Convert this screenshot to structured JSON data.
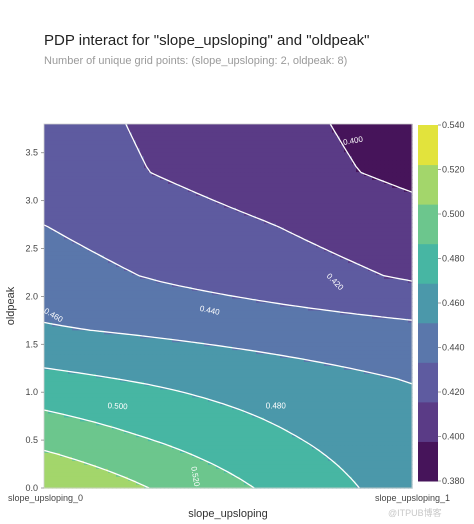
{
  "title": "PDP interact for \"slope_upsloping\" and \"oldpeak\"",
  "subtitle": "Number of unique grid points: (slope_upsloping: 2, oldpeak: 8)",
  "watermark": "@ITPUB博客",
  "chart_data": {
    "type": "contour",
    "xlabel": "slope_upsloping",
    "ylabel": "oldpeak",
    "x_tick_labels": [
      "slope_upsloping_0",
      "slope_upsloping_1"
    ],
    "xlim": [
      0,
      1
    ],
    "ylim": [
      0,
      3.8
    ],
    "y_ticks": [
      0.0,
      0.5,
      1.0,
      1.5,
      2.0,
      2.5,
      3.0,
      3.5
    ],
    "y_tick_labels": [
      "0.0",
      "0.5",
      "1.0",
      "1.5",
      "2.0",
      "2.5",
      "3.0",
      "3.5"
    ],
    "colorbar": {
      "ticks": [
        0.38,
        0.4,
        0.42,
        0.44,
        0.46,
        0.48,
        0.5,
        0.52,
        0.54
      ],
      "tick_labels": [
        "0.380",
        "0.400",
        "0.420",
        "0.440",
        "0.460",
        "0.480",
        "0.500",
        "0.520",
        "0.540"
      ],
      "colors": [
        "#46145a",
        "#5a3b86",
        "#5e5ba0",
        "#5a77ab",
        "#4b98aa",
        "#47b6a3",
        "#6cc68d",
        "#a3d66b",
        "#e2e33c"
      ]
    },
    "grid_x": [
      0,
      1
    ],
    "grid_y": [
      0,
      0.55,
      1.1,
      1.65,
      2.2,
      2.75,
      3.3,
      3.8
    ],
    "values": [
      [
        0.54,
        0.47
      ],
      [
        0.512,
        0.465
      ],
      [
        0.487,
        0.46
      ],
      [
        0.462,
        0.445
      ],
      [
        0.448,
        0.418
      ],
      [
        0.44,
        0.408
      ],
      [
        0.43,
        0.395
      ],
      [
        0.428,
        0.392
      ]
    ],
    "contour_levels": [
      0.4,
      0.42,
      0.44,
      0.46,
      0.48,
      0.5,
      0.52
    ],
    "contour_labels": [
      {
        "text": "0.460",
        "x": 0.025,
        "y": 1.8,
        "angle": 30
      },
      {
        "text": "0.440",
        "x": 0.45,
        "y": 1.85,
        "angle": 12
      },
      {
        "text": "0.420",
        "x": 0.79,
        "y": 2.15,
        "angle": 45
      },
      {
        "text": "0.480",
        "x": 0.63,
        "y": 0.85,
        "angle": 0
      },
      {
        "text": "0.500",
        "x": 0.2,
        "y": 0.85,
        "angle": 3
      },
      {
        "text": "0.520",
        "x": 0.41,
        "y": 0.12,
        "angle": 80
      },
      {
        "text": "0.400",
        "x": 0.84,
        "y": 3.62,
        "angle": -10
      }
    ]
  }
}
